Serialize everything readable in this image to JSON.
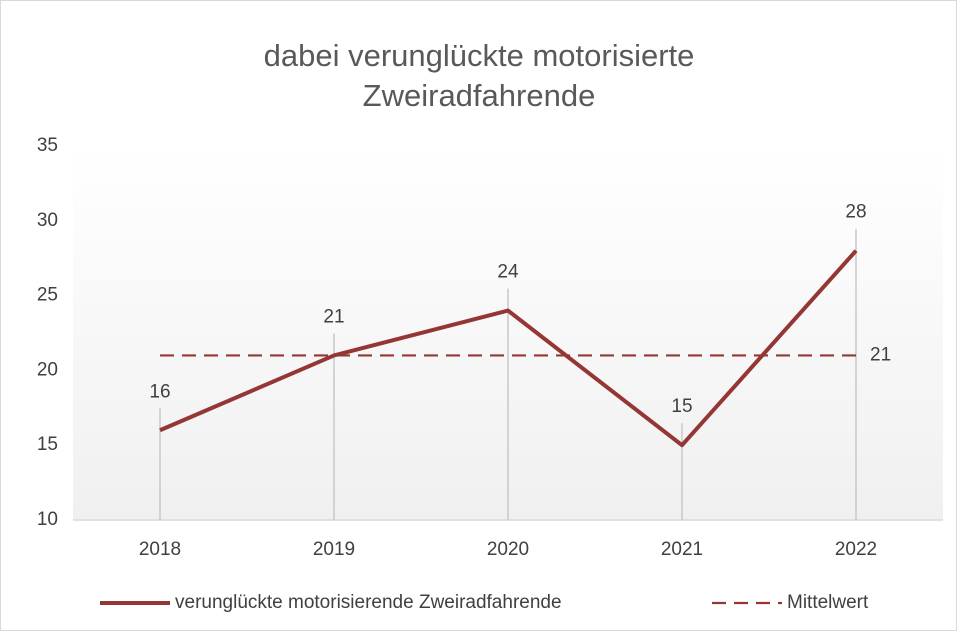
{
  "chart_data": {
    "type": "line",
    "title": [
      "dabei verunglückte motorisierte",
      "Zweiradfahrende"
    ],
    "categories": [
      "2018",
      "2019",
      "2020",
      "2021",
      "2022"
    ],
    "series": [
      {
        "name": "verunglückte motorisierende Zweiradfahrende",
        "color": "#943634",
        "dash": "solid",
        "data_labels": "all",
        "values": [
          16,
          21,
          24,
          15,
          28
        ]
      },
      {
        "name": "Mittelwert",
        "color": "#943634",
        "dash": "dashed",
        "data_labels": "last",
        "values": [
          21,
          21,
          21,
          21,
          21
        ]
      }
    ],
    "ylim": [
      10,
      35
    ],
    "yticks": [
      10,
      15,
      20,
      25,
      30,
      35
    ],
    "grid": false,
    "drop_lines": true,
    "legend": "bottom"
  }
}
